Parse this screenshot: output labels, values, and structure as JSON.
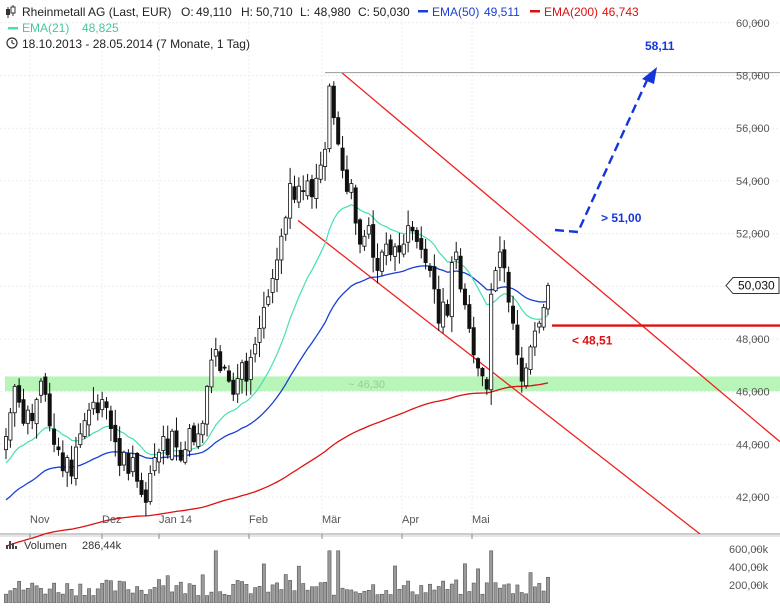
{
  "header": {
    "symbol_icon": "candlestick-icon",
    "title": "Rheinmetall AG (Last, EUR)",
    "ohlc": [
      {
        "label": "O:",
        "value": "49,110"
      },
      {
        "label": "H:",
        "value": "50,710"
      },
      {
        "label": "L:",
        "value": "48,980"
      },
      {
        "label": "C:",
        "value": "50,030"
      }
    ],
    "ema50_label": "EMA(50)",
    "ema50_value": "49,511",
    "ema200_label": "EMA(200)",
    "ema200_value": "46,743",
    "ema21_label": "EMA(21)",
    "ema21_value": "48,825",
    "clock_icon": "clock-icon",
    "period": "18.10.2013 - 28.05.2014 (7 Monate, 1 Tag)"
  },
  "colors": {
    "ema50": "#1a3fd6",
    "ema200": "#dd1111",
    "ema21": "#45e0b0",
    "up": "#ffffff",
    "down": "#111111",
    "zone": "#b8f5b8",
    "trend": "#ee2222",
    "target": "#1436d8"
  },
  "annotations": {
    "target": "58,11",
    "breakout": "> 51,00",
    "support": "< 48,51",
    "zone": "~ 46,30",
    "last_price": "50,030"
  },
  "volume": {
    "icon": "volume-bars-icon",
    "label": "Volumen",
    "value": "286,44k",
    "ticks": [
      "600,00k",
      "400,00k",
      "200,00k"
    ]
  },
  "chart_data": {
    "type": "candlestick",
    "title": "Rheinmetall AG (Last, EUR)",
    "ylim": [
      40.6,
      60.6
    ],
    "y_ticks": [
      "60,000",
      "58,000",
      "56,000",
      "54,000",
      "52,000",
      "50,000",
      "48,000",
      "46,000",
      "44,000",
      "42,000"
    ],
    "x_ticks": [
      "Nov",
      "Dez",
      "Jan 14",
      "Feb",
      "Mär",
      "Apr",
      "Mai"
    ],
    "closes": [
      44.3,
      45.2,
      46.2,
      45.6,
      44.8,
      45.3,
      44.9,
      45.7,
      46.4,
      45.9,
      44.7,
      44.0,
      43.8,
      43.0,
      43.5,
      42.8,
      43.9,
      44.4,
      44.9,
      45.3,
      45.6,
      45.2,
      45.7,
      45.4,
      44.6,
      44.1,
      43.2,
      43.7,
      42.9,
      43.5,
      42.6,
      42.1,
      41.8,
      42.9,
      43.5,
      43.7,
      44.3,
      43.6,
      44.5,
      43.9,
      43.4,
      43.8,
      44.6,
      44.1,
      44.4,
      44.8,
      46.2,
      47.2,
      47.6,
      46.8,
      46.9,
      46.4,
      45.9,
      46.5,
      47.1,
      46.4,
      47.3,
      47.8,
      48.4,
      49.2,
      49.6,
      50.3,
      51.0,
      51.9,
      52.6,
      53.9,
      53.3,
      53.8,
      53.6,
      54.0,
      53.4,
      54.1,
      54.6,
      55.2,
      57.6,
      56.4,
      55.4,
      54.4,
      53.6,
      53.9,
      52.4,
      51.6,
      51.9,
      52.3,
      51.1,
      50.6,
      51.3,
      51.6,
      51.2,
      51.5,
      51.3,
      51.6,
      52.3,
      52.1,
      51.7,
      51.4,
      50.9,
      50.6,
      49.9,
      48.6,
      49.4,
      48.9,
      50.9,
      51.3,
      49.9,
      49.3,
      48.4,
      47.4,
      46.9,
      46.6,
      46.1,
      49.7,
      50.6,
      51.3,
      50.7,
      49.4,
      48.6,
      47.4,
      46.4,
      46.9,
      47.7,
      48.3,
      48.6,
      49.2,
      50.03
    ],
    "series": [
      {
        "name": "EMA(21)",
        "value": 48.825
      },
      {
        "name": "EMA(50)",
        "value": 49.511
      },
      {
        "name": "EMA(200)",
        "value": 46.743
      }
    ],
    "levels": [
      58.11,
      51.0,
      48.51,
      46.3
    ],
    "volume_ylim": [
      0,
      700
    ]
  }
}
